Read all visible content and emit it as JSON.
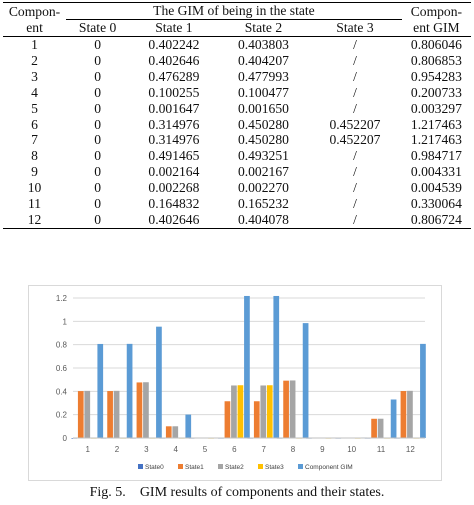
{
  "table": {
    "col_component": "Compon-\nent",
    "col_group": "The GIM of being in the state",
    "col_gim": "Compon-\nent GIM",
    "states": [
      "State 0",
      "State 1",
      "State 2",
      "State 3"
    ],
    "rows": [
      [
        "1",
        "0",
        "0.402242",
        "0.403803",
        "/",
        "0.806046"
      ],
      [
        "2",
        "0",
        "0.402646",
        "0.404207",
        "/",
        "0.806853"
      ],
      [
        "3",
        "0",
        "0.476289",
        "0.477993",
        "/",
        "0.954283"
      ],
      [
        "4",
        "0",
        "0.100255",
        "0.100477",
        "/",
        "0.200733"
      ],
      [
        "5",
        "0",
        "0.001647",
        "0.001650",
        "/",
        "0.003297"
      ],
      [
        "6",
        "0",
        "0.314976",
        "0.450280",
        "0.452207",
        "1.217463"
      ],
      [
        "7",
        "0",
        "0.314976",
        "0.450280",
        "0.452207",
        "1.217463"
      ],
      [
        "8",
        "0",
        "0.491465",
        "0.493251",
        "/",
        "0.984717"
      ],
      [
        "9",
        "0",
        "0.002164",
        "0.002167",
        "/",
        "0.004331"
      ],
      [
        "10",
        "0",
        "0.002268",
        "0.002270",
        "/",
        "0.004539"
      ],
      [
        "11",
        "0",
        "0.164832",
        "0.165232",
        "/",
        "0.330064"
      ],
      [
        "12",
        "0",
        "0.402646",
        "0.404078",
        "/",
        "0.806724"
      ]
    ]
  },
  "chart_data": {
    "type": "bar",
    "categories": [
      "1",
      "2",
      "3",
      "4",
      "5",
      "6",
      "7",
      "8",
      "9",
      "10",
      "11",
      "12"
    ],
    "ylim": [
      0,
      1.2
    ],
    "yticks": [
      "0",
      "0.2",
      "0.4",
      "0.6",
      "0.8",
      "1",
      "1.2"
    ],
    "grid": true,
    "legend_position": "bottom",
    "series": [
      {
        "name": "State0",
        "color": "#4472c4",
        "values": [
          0,
          0,
          0,
          0,
          0,
          0,
          0,
          0,
          0,
          0,
          0,
          0
        ]
      },
      {
        "name": "State1",
        "color": "#ed7d31",
        "values": [
          0.402242,
          0.402646,
          0.476289,
          0.100255,
          0.001647,
          0.314976,
          0.314976,
          0.491465,
          0.002164,
          0.002268,
          0.164832,
          0.402646
        ]
      },
      {
        "name": "State2",
        "color": "#a5a5a5",
        "values": [
          0.403803,
          0.404207,
          0.477993,
          0.100477,
          0.00165,
          0.45028,
          0.45028,
          0.493251,
          0.002167,
          0.00227,
          0.165232,
          0.404078
        ]
      },
      {
        "name": "State3",
        "color": "#ffc000",
        "values": [
          0,
          0,
          0,
          0,
          0,
          0.452207,
          0.452207,
          0,
          0,
          0,
          0,
          0
        ]
      },
      {
        "name": "Component GIM",
        "color": "#5b9bd5",
        "values": [
          0.806046,
          0.806853,
          0.954283,
          0.200733,
          0.003297,
          1.217463,
          1.217463,
          0.984717,
          0.004331,
          0.004539,
          0.330064,
          0.806724
        ]
      }
    ]
  },
  "caption": {
    "label": "Fig. 5.",
    "text": "GIM results of components and their states."
  }
}
